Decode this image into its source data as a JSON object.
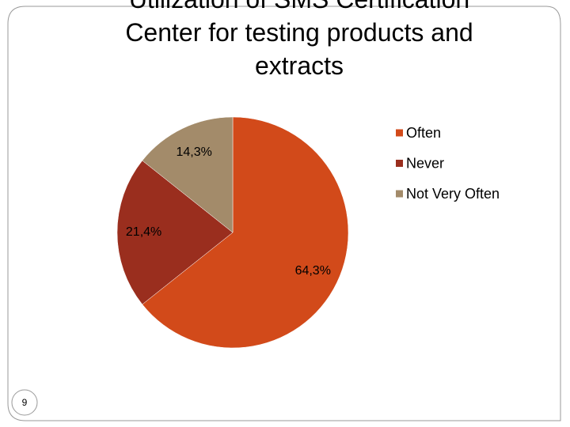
{
  "chart_data": {
    "type": "pie",
    "title": "Utilization of SMS Certification Center for testing products and extracts",
    "categories": [
      "Often",
      "Never",
      "Not Very Often"
    ],
    "values": [
      64.3,
      21.4,
      14.3
    ],
    "value_labels": [
      "64,3%",
      "21,4%",
      "14,3%"
    ],
    "colors": [
      "#d24a1a",
      "#9a2e1e",
      "#a38b6a"
    ],
    "legend": "right"
  },
  "slide_number": "9"
}
